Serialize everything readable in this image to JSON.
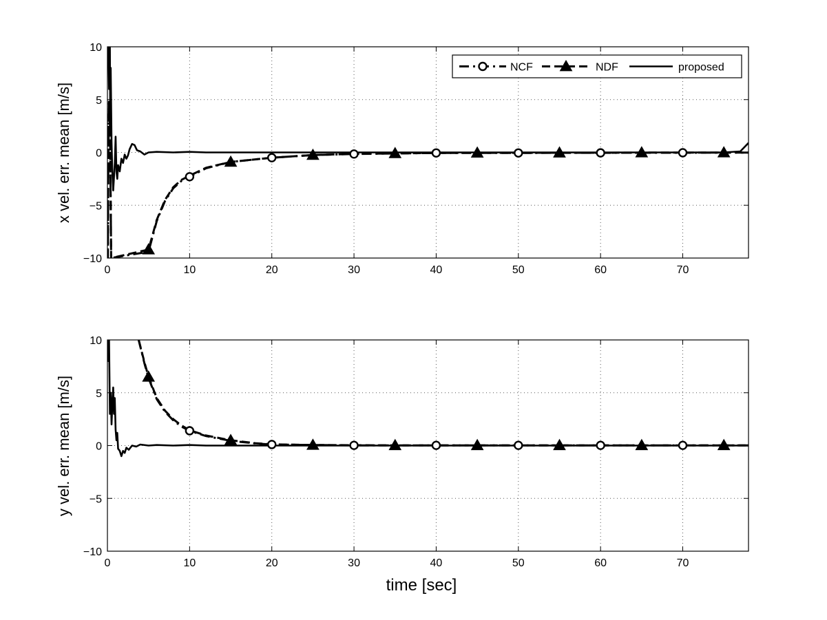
{
  "chart_data": [
    {
      "type": "line",
      "id": "x",
      "xlabel": "",
      "ylabel": "x vel. err. mean [m/s]",
      "xlim": [
        0,
        78
      ],
      "ylim": [
        -10,
        10
      ],
      "xticks": [
        0,
        10,
        20,
        30,
        40,
        50,
        60,
        70
      ],
      "yticks": [
        -10,
        -5,
        0,
        5,
        10
      ],
      "xtick_labels": [
        "0",
        "10",
        "20",
        "30",
        "40",
        "50",
        "60",
        "70"
      ],
      "ytick_labels": [
        "−10",
        "−5",
        "0",
        "5",
        "10"
      ],
      "grid": true,
      "legend": "top-right",
      "series": [
        {
          "name": "NCF",
          "style": "dash-dot",
          "marker": "circle",
          "marker_x": [
            10,
            20,
            30,
            40,
            50,
            60,
            70
          ],
          "x": [
            0.05,
            0.1,
            0.2,
            0.3,
            0.4,
            0.45,
            5,
            6,
            7,
            8,
            9,
            10,
            12,
            15,
            20,
            25,
            30,
            35,
            40,
            45,
            50,
            55,
            60,
            65,
            70,
            75,
            78
          ],
          "y": [
            -10,
            -2,
            5,
            3,
            -5,
            -10,
            -9.4,
            -6.5,
            -4.6,
            -3.4,
            -2.7,
            -2.3,
            -1.5,
            -0.9,
            -0.5,
            -0.25,
            -0.15,
            -0.1,
            -0.05,
            -0.05,
            -0.05,
            -0.04,
            -0.04,
            -0.03,
            -0.03,
            -0.02,
            -0.02
          ]
        },
        {
          "name": "NDF",
          "style": "dashed",
          "marker": "triangle",
          "marker_x": [
            5,
            15,
            25,
            35,
            45,
            55,
            65,
            75
          ],
          "x": [
            0.05,
            0.1,
            0.2,
            0.3,
            0.4,
            0.45,
            5,
            6,
            7,
            8,
            9,
            10,
            12,
            15,
            20,
            25,
            30,
            35,
            40,
            45,
            50,
            55,
            60,
            65,
            70,
            75,
            78
          ],
          "y": [
            -10,
            -2,
            5,
            3,
            -5,
            -10,
            -9.2,
            -6.4,
            -4.5,
            -3.3,
            -2.6,
            -2.2,
            -1.45,
            -0.9,
            -0.5,
            -0.25,
            -0.14,
            -0.09,
            -0.05,
            -0.04,
            -0.04,
            -0.03,
            -0.03,
            -0.02,
            -0.02,
            -0.02,
            -0.02
          ]
        },
        {
          "name": "proposed",
          "style": "solid",
          "marker": "none",
          "x": [
            0.0,
            0.1,
            0.2,
            0.3,
            0.35,
            0.4,
            0.5,
            0.6,
            0.7,
            0.8,
            0.9,
            1.0,
            1.1,
            1.2,
            1.3,
            1.5,
            1.7,
            1.9,
            2.1,
            2.3,
            2.5,
            2.7,
            3.0,
            3.3,
            3.6,
            4.0,
            4.5,
            5,
            6,
            8,
            10,
            12,
            15,
            20,
            30,
            40,
            50,
            60,
            70,
            75,
            77,
            78
          ],
          "y": [
            10,
            10,
            6,
            10,
            2,
            8,
            1,
            -2,
            -3.6,
            -2.4,
            -1,
            1.5,
            -1.8,
            -2.5,
            -1.2,
            -1.8,
            -0.6,
            -1.0,
            -0.2,
            -0.6,
            -0.3,
            0.3,
            0.8,
            0.7,
            0.2,
            0.1,
            -0.2,
            0,
            0.05,
            0,
            0.05,
            0,
            0,
            0,
            0,
            0,
            0,
            0,
            0,
            0,
            0.1,
            0.9
          ]
        }
      ]
    },
    {
      "type": "line",
      "id": "y",
      "xlabel": "time [sec]",
      "ylabel": "y vel. err. mean [m/s]",
      "xlim": [
        0,
        78
      ],
      "ylim": [
        -10,
        10
      ],
      "xticks": [
        0,
        10,
        20,
        30,
        40,
        50,
        60,
        70
      ],
      "yticks": [
        -10,
        -5,
        0,
        5,
        10
      ],
      "xtick_labels": [
        "0",
        "10",
        "20",
        "30",
        "40",
        "50",
        "60",
        "70"
      ],
      "ytick_labels": [
        "−10",
        "−5",
        "0",
        "5",
        "10"
      ],
      "grid": true,
      "legend": "none",
      "series": [
        {
          "name": "NCF",
          "style": "dash-dot",
          "marker": "circle",
          "marker_x": [
            10,
            20,
            30,
            40,
            50,
            60,
            70
          ],
          "x": [
            3.8,
            4.5,
            5,
            6,
            7,
            8,
            9,
            10,
            12,
            15,
            18,
            20,
            25,
            30,
            35,
            40,
            45,
            50,
            55,
            60,
            65,
            70,
            75,
            78
          ],
          "y": [
            10,
            7.8,
            6.4,
            4.4,
            3.2,
            2.4,
            1.8,
            1.4,
            0.9,
            0.45,
            0.2,
            0.1,
            0.05,
            0.02,
            0.02,
            0.02,
            0.02,
            0.02,
            0.02,
            0.02,
            0.02,
            0.02,
            0.02,
            0.02
          ]
        },
        {
          "name": "NDF",
          "style": "dashed",
          "marker": "triangle",
          "marker_x": [
            5,
            15,
            25,
            35,
            45,
            55,
            65,
            75
          ],
          "x": [
            3.8,
            4.5,
            5,
            6,
            7,
            8,
            9,
            10,
            12,
            15,
            18,
            20,
            25,
            30,
            35,
            40,
            45,
            50,
            55,
            60,
            65,
            70,
            75,
            78
          ],
          "y": [
            10,
            7.9,
            6.5,
            4.5,
            3.3,
            2.5,
            1.9,
            1.45,
            0.95,
            0.5,
            0.22,
            0.12,
            0.05,
            0.03,
            0.02,
            0.02,
            0.02,
            0.02,
            0.02,
            0.02,
            0.02,
            0.02,
            0.02,
            0.02
          ]
        },
        {
          "name": "proposed",
          "style": "solid",
          "marker": "none",
          "x": [
            0.0,
            0.1,
            0.2,
            0.3,
            0.4,
            0.5,
            0.6,
            0.7,
            0.8,
            0.9,
            1.0,
            1.1,
            1.2,
            1.3,
            1.5,
            1.7,
            1.9,
            2.1,
            2.3,
            2.6,
            3.0,
            3.5,
            4.0,
            5,
            6,
            8,
            10,
            12,
            15,
            20,
            30,
            40,
            50,
            60,
            70,
            78
          ],
          "y": [
            10,
            8,
            10,
            3,
            5,
            2,
            4,
            5.5,
            3,
            4.5,
            1.5,
            0.5,
            1.2,
            -0.3,
            -0.5,
            -1.0,
            -0.5,
            -0.7,
            -0.2,
            -0.4,
            0,
            -0.1,
            0.1,
            0,
            0.05,
            0,
            0.05,
            0,
            0,
            0,
            0,
            0,
            0,
            0,
            0,
            0
          ]
        }
      ]
    }
  ]
}
